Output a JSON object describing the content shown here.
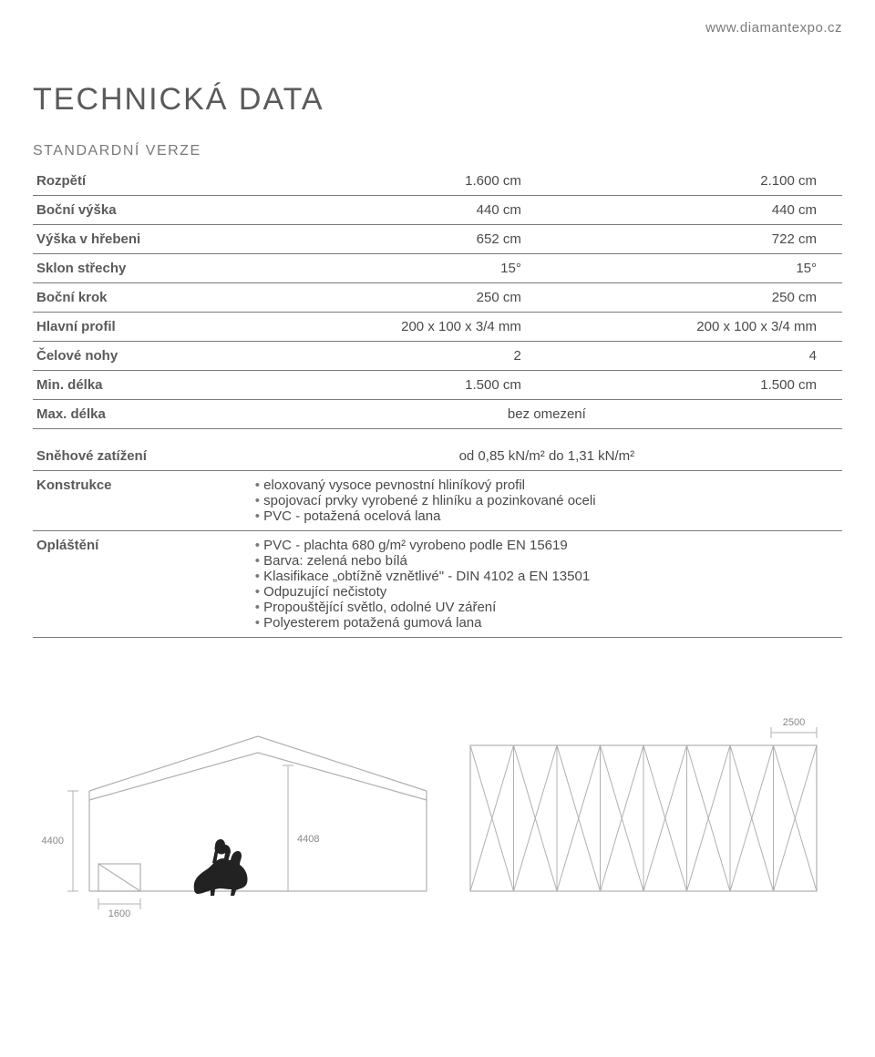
{
  "url": "www.diamantexpo.cz",
  "title": "TECHNICKÁ DATA",
  "subtitle": "STANDARDNÍ VERZE",
  "colors": {
    "text": "#4a4a4a",
    "light_text": "#7a7a7a",
    "rule": "#7a7a7a",
    "diagram_line": "#b0b0b0",
    "diagram_fill": "#ffffff",
    "rider": "#222222",
    "background": "#ffffff"
  },
  "rows": [
    {
      "label": "Rozpětí",
      "v1": "1.600 cm",
      "v2": "2.100 cm"
    },
    {
      "label": "Boční výška",
      "v1": "440 cm",
      "v2": "440 cm"
    },
    {
      "label": "Výška v hřebeni",
      "v1": "652 cm",
      "v2": "722 cm"
    },
    {
      "label": "Sklon střechy",
      "v1": "15°",
      "v2": "15°"
    },
    {
      "label": "Boční krok",
      "v1": "250 cm",
      "v2": "250 cm"
    },
    {
      "label": "Hlavní profil",
      "v1": "200 x 100 x 3/4 mm",
      "v2": "200 x 100 x 3/4 mm"
    },
    {
      "label": "Čelové nohy",
      "v1": "2",
      "v2": "4"
    },
    {
      "label": "Min. délka",
      "v1": "1.500 cm",
      "v2": "1.500 cm"
    },
    {
      "label": "Max. délka",
      "span": "bez omezení"
    }
  ],
  "snow": {
    "label": "Sněhové zatížení",
    "value": "od 0,85 kN/m² do 1,31 kN/m²"
  },
  "construction": {
    "label": "Konstrukce",
    "items": [
      "eloxovaný vysoce pevnostní hliníkový profil",
      "spojovací prvky vyrobené z hliníku a pozinkované oceli",
      "PVC - potažená ocelová lana"
    ]
  },
  "cladding": {
    "label": "Opláštění",
    "items": [
      "PVC - plachta 680 g/m² vyrobeno podle EN 15619",
      "Barva: zelená nebo bílá",
      "Klasifikace „obtížně vznětlivé\" - DIN 4102 a EN 13501",
      "Odpuzující nečistoty",
      "Propouštějící světlo, odolné UV záření",
      "Polyesterem potažená gumová lana"
    ]
  },
  "diagram": {
    "front": {
      "height_label": "4400",
      "door_width": "1600",
      "ridge_label": "4408"
    },
    "side": {
      "bay_width": "2500"
    }
  }
}
